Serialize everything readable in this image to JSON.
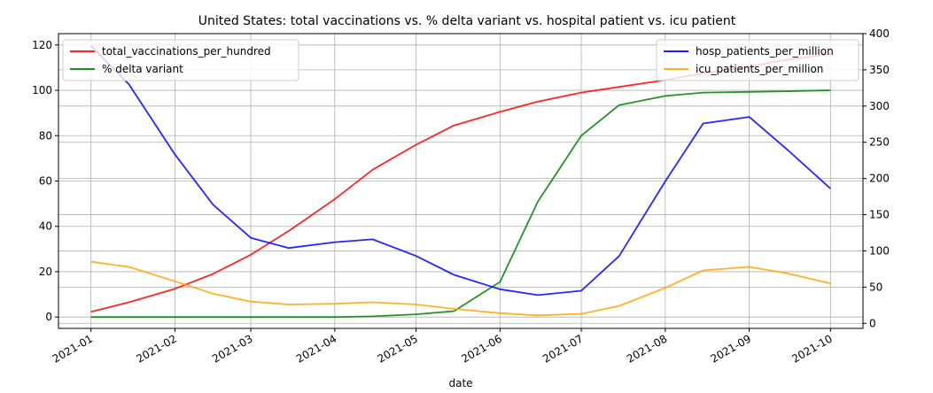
{
  "chart_data": {
    "type": "line",
    "title": "United States: total vaccinations vs. % delta variant vs. hospital patient vs. icu patient",
    "xlabel": "date",
    "x_ticks": [
      "2021-01",
      "2021-02",
      "2021-03",
      "2021-04",
      "2021-05",
      "2021-06",
      "2021-07",
      "2021-08",
      "2021-09",
      "2021-10"
    ],
    "x": [
      "2021-01-01",
      "2021-01-15",
      "2021-02-01",
      "2021-02-15",
      "2021-03-01",
      "2021-03-15",
      "2021-04-01",
      "2021-04-15",
      "2021-05-01",
      "2021-05-15",
      "2021-06-01",
      "2021-06-15",
      "2021-07-01",
      "2021-07-15",
      "2021-08-01",
      "2021-08-15",
      "2021-09-01",
      "2021-09-15",
      "2021-10-01"
    ],
    "y_left": {
      "ylim": [
        -5,
        125
      ],
      "ticks": [
        0,
        20,
        40,
        60,
        80,
        100,
        120
      ]
    },
    "y_right": {
      "ylim": [
        -7,
        400
      ],
      "ticks": [
        0,
        50,
        100,
        150,
        200,
        250,
        300,
        350,
        400
      ]
    },
    "grid": true,
    "series": [
      {
        "name": "total_vaccinations_per_hundred",
        "axis": "left",
        "color": "#ff0000",
        "values": [
          2.3,
          6.5,
          12.5,
          19,
          27.5,
          38,
          52,
          65,
          76,
          84.5,
          90.5,
          95,
          99,
          101.5,
          104.5,
          107.5,
          110.5,
          113.5,
          116
        ]
      },
      {
        "name": "% delta variant",
        "axis": "left",
        "color": "#008000",
        "values": [
          0,
          0,
          0,
          0,
          0,
          0,
          0,
          0.3,
          1.2,
          2.6,
          15.5,
          51,
          80,
          93.5,
          97.5,
          99,
          99.3,
          99.6,
          100
        ]
      },
      {
        "name": "hosp_patients_per_million",
        "axis": "right",
        "color": "#0000ff",
        "values": [
          383,
          330,
          233,
          164,
          118,
          104,
          112,
          116,
          93,
          67,
          47,
          39,
          45,
          93,
          196,
          276,
          285,
          240,
          186
        ]
      },
      {
        "name": "icu_patients_per_million",
        "axis": "right",
        "color": "#ffa500",
        "values": [
          85,
          78,
          58,
          41,
          30,
          26,
          27,
          29,
          26,
          20,
          14,
          11,
          13,
          24,
          49,
          73,
          78,
          69,
          55
        ]
      }
    ],
    "legends": [
      {
        "placement": "top-left",
        "entries": [
          "total_vaccinations_per_hundred",
          "% delta variant"
        ]
      },
      {
        "placement": "top-right",
        "entries": [
          "hosp_patients_per_million",
          "icu_patients_per_million"
        ]
      }
    ]
  }
}
